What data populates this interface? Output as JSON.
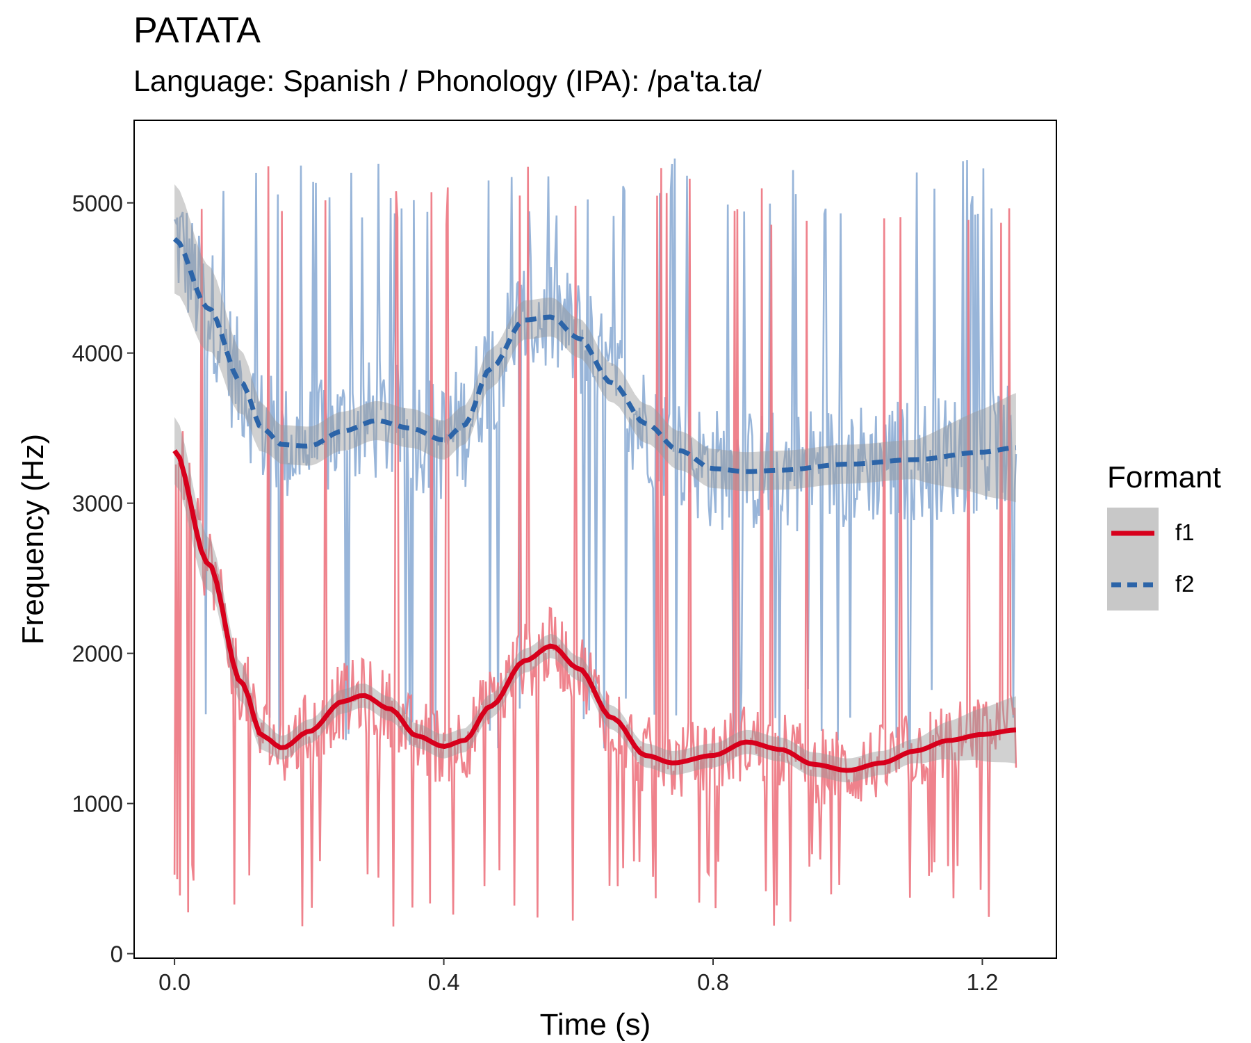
{
  "chart_data": {
    "type": "line",
    "title": "PATATA",
    "subtitle": "Language: Spanish / Phonology (IPA): /pa'ta.ta/",
    "xlabel": "Time (s)",
    "ylabel": "Frequency (Hz)",
    "xlim": [
      -0.06,
      1.31
    ],
    "ylim": [
      -30,
      5550
    ],
    "xticks": [
      0.0,
      0.4,
      0.8,
      1.2
    ],
    "xtick_labels": [
      "0.0",
      "0.4",
      "0.8",
      "1.2"
    ],
    "yticks": [
      0,
      1000,
      2000,
      3000,
      4000,
      5000
    ],
    "ytick_labels": [
      "0",
      "1000",
      "2000",
      "3000",
      "4000",
      "5000"
    ],
    "grid": false,
    "legend": {
      "title": "Formant",
      "position": "right"
    },
    "series": [
      {
        "name": "f1",
        "color": "#D7001C",
        "raw_color": "#EE7782",
        "dash": "solid",
        "smooth": {
          "x": [
            0.0,
            0.05,
            0.1,
            0.13,
            0.16,
            0.2,
            0.25,
            0.28,
            0.32,
            0.36,
            0.4,
            0.43,
            0.47,
            0.52,
            0.56,
            0.6,
            0.65,
            0.7,
            0.74,
            0.8,
            0.85,
            0.9,
            0.95,
            1.0,
            1.05,
            1.1,
            1.15,
            1.2,
            1.25
          ],
          "y": [
            3350,
            2600,
            1800,
            1450,
            1370,
            1480,
            1680,
            1720,
            1630,
            1450,
            1380,
            1420,
            1650,
            1950,
            2050,
            1900,
            1570,
            1320,
            1270,
            1320,
            1410,
            1360,
            1260,
            1220,
            1270,
            1350,
            1420,
            1460,
            1490
          ],
          "se": 80
        },
        "raw_range": {
          "x": [
            0.0,
            1.25
          ],
          "mean_follows_smooth": true,
          "spread": 260,
          "spike_min": 180,
          "spike_max": 5250
        }
      },
      {
        "name": "f2",
        "color": "#2C64A8",
        "raw_color": "#8FAFD6",
        "dash": "dashed",
        "smooth": {
          "x": [
            0.0,
            0.05,
            0.1,
            0.13,
            0.16,
            0.2,
            0.25,
            0.3,
            0.35,
            0.4,
            0.43,
            0.47,
            0.52,
            0.56,
            0.6,
            0.65,
            0.7,
            0.75,
            0.8,
            0.85,
            0.9,
            1.0,
            1.1,
            1.2,
            1.25
          ],
          "y": [
            4760,
            4300,
            3800,
            3500,
            3390,
            3380,
            3480,
            3550,
            3500,
            3420,
            3520,
            3900,
            4220,
            4240,
            4100,
            3800,
            3530,
            3350,
            3230,
            3210,
            3220,
            3260,
            3290,
            3340,
            3370
          ],
          "se": 130
        },
        "raw_range": {
          "x": [
            0.0,
            1.25
          ],
          "mean_follows_smooth": true,
          "spread": 420,
          "spike_min": 1300,
          "spike_max": 5300
        }
      }
    ]
  }
}
